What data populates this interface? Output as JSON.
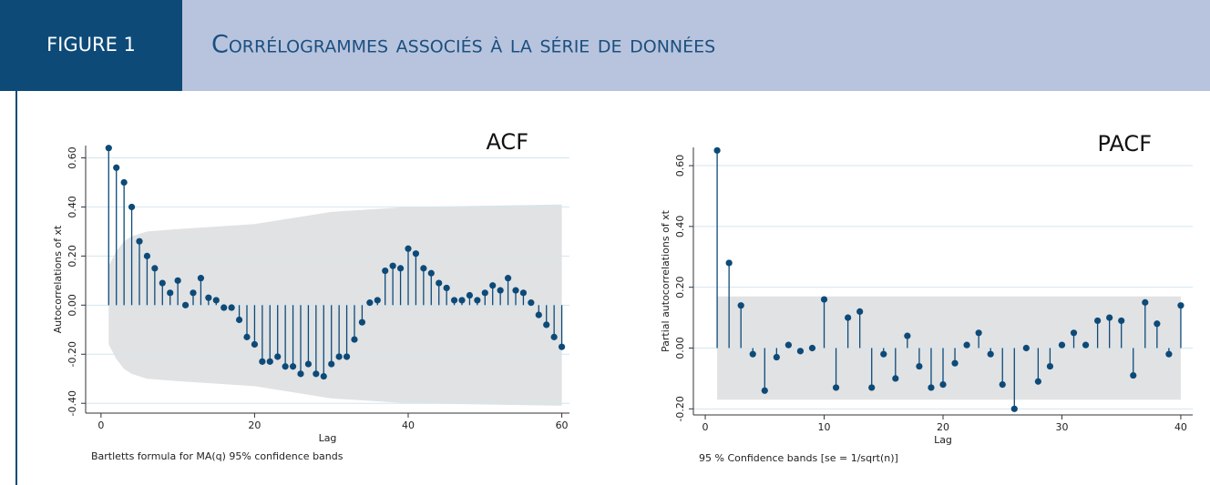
{
  "header": {
    "figure_label": "FIGURE 1",
    "title": "Corrélogrammes associés à la série de données"
  },
  "chart_data": [
    {
      "type": "stem",
      "title": "ACF",
      "x_label": "Lag",
      "y_label": "Autocorrelations of xt",
      "note": "Bartletts formula for MA(q) 95%  confidence bands",
      "color": "#0d4a78",
      "x": [
        1,
        2,
        3,
        4,
        5,
        6,
        7,
        8,
        9,
        10,
        11,
        12,
        13,
        14,
        15,
        16,
        17,
        18,
        19,
        20,
        21,
        22,
        23,
        24,
        25,
        26,
        27,
        28,
        29,
        30,
        31,
        32,
        33,
        34,
        35,
        36,
        37,
        38,
        39,
        40,
        41,
        42,
        43,
        44,
        45,
        46,
        47,
        48,
        49,
        50,
        51,
        52,
        53,
        54,
        55,
        56,
        57,
        58,
        59,
        60
      ],
      "values": [
        0.64,
        0.56,
        0.5,
        0.4,
        0.26,
        0.2,
        0.15,
        0.09,
        0.05,
        0.1,
        0.0,
        0.05,
        0.11,
        0.03,
        0.02,
        -0.01,
        -0.01,
        -0.06,
        -0.13,
        -0.16,
        -0.23,
        -0.23,
        -0.21,
        -0.25,
        -0.25,
        -0.28,
        -0.24,
        -0.28,
        -0.29,
        -0.24,
        -0.21,
        -0.21,
        -0.14,
        -0.07,
        0.01,
        0.02,
        0.14,
        0.16,
        0.15,
        0.23,
        0.21,
        0.15,
        0.13,
        0.09,
        0.07,
        0.02,
        0.02,
        0.04,
        0.02,
        0.05,
        0.08,
        0.06,
        0.11,
        0.06,
        0.05,
        0.01,
        -0.04,
        -0.08,
        -0.13,
        -0.17
      ],
      "band": {
        "x": [
          1,
          2,
          3,
          4,
          6,
          10,
          20,
          30,
          35,
          40,
          60
        ],
        "upper": [
          0.16,
          0.22,
          0.26,
          0.28,
          0.3,
          0.31,
          0.33,
          0.38,
          0.39,
          0.4,
          0.41
        ],
        "lower": [
          -0.16,
          -0.22,
          -0.26,
          -0.28,
          -0.3,
          -0.31,
          -0.33,
          -0.38,
          -0.39,
          -0.4,
          -0.41
        ]
      },
      "xlim": [
        -2,
        61
      ],
      "xticks": [
        0,
        20,
        40,
        60
      ],
      "ylim": [
        -0.44,
        0.65
      ],
      "yticks": [
        {
          "value": -0.4,
          "label": "-0.40"
        },
        {
          "value": -0.2,
          "label": "-0.20"
        },
        {
          "value": 0,
          "label": "0.00"
        },
        {
          "value": 0.2,
          "label": "0.20"
        },
        {
          "value": 0.4,
          "label": "0.40"
        },
        {
          "value": 0.6,
          "label": "0.60"
        }
      ],
      "grid": true
    },
    {
      "type": "stem",
      "title": "PACF",
      "x_label": "Lag",
      "y_label": "Partial autocorrelations of xt",
      "note": "95 % Confidence bands [se = 1/sqrt(n)]",
      "color": "#0d4a78",
      "x": [
        1,
        2,
        3,
        4,
        5,
        6,
        7,
        8,
        9,
        10,
        11,
        12,
        13,
        14,
        15,
        16,
        17,
        18,
        19,
        20,
        21,
        22,
        23,
        24,
        25,
        26,
        27,
        28,
        29,
        30,
        31,
        32,
        33,
        34,
        35,
        36,
        37,
        38,
        39,
        40
      ],
      "values": [
        0.65,
        0.28,
        0.14,
        -0.02,
        -0.14,
        -0.03,
        0.01,
        -0.01,
        0.0,
        0.16,
        -0.13,
        0.1,
        0.12,
        -0.13,
        -0.02,
        -0.1,
        0.04,
        -0.06,
        -0.13,
        -0.12,
        -0.05,
        0.01,
        0.05,
        -0.02,
        -0.12,
        -0.2,
        0.0,
        -0.11,
        -0.06,
        0.01,
        0.05,
        0.01,
        0.09,
        0.1,
        0.09,
        -0.09,
        0.15,
        0.08,
        -0.02,
        0.14
      ],
      "band": {
        "x": [
          1,
          40
        ],
        "upper": [
          0.17,
          0.17
        ],
        "lower": [
          -0.17,
          -0.17
        ]
      },
      "xlim": [
        -1,
        41
      ],
      "xticks": [
        0,
        10,
        20,
        30,
        40
      ],
      "ylim": [
        -0.22,
        0.66
      ],
      "yticks": [
        {
          "value": -0.2,
          "label": "-0.20"
        },
        {
          "value": 0,
          "label": "0.00"
        },
        {
          "value": 0.2,
          "label": "0.20"
        },
        {
          "value": 0.4,
          "label": "0.40"
        },
        {
          "value": 0.6,
          "label": "0.60"
        }
      ],
      "grid": true
    }
  ]
}
